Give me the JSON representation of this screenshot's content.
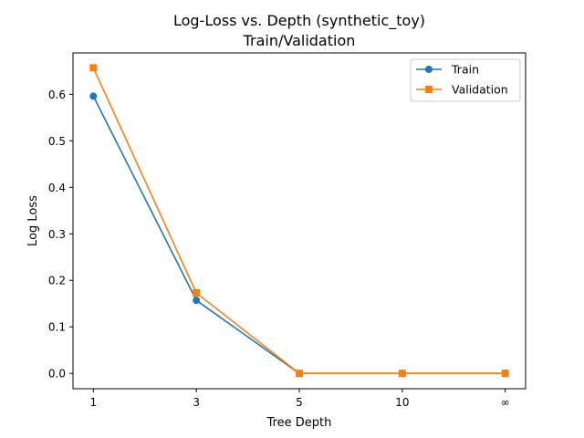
{
  "chart_data": {
    "type": "line",
    "title": "Log-Loss vs. Depth (synthetic_toy)",
    "subtitle": "Train/Validation",
    "xlabel": "Tree Depth",
    "ylabel": "Log Loss",
    "categories": [
      "1",
      "3",
      "5",
      "10",
      "∞"
    ],
    "yticks": [
      0.0,
      0.1,
      0.2,
      0.3,
      0.4,
      0.5,
      0.6
    ],
    "ytick_labels": [
      "0.0",
      "0.1",
      "0.2",
      "0.3",
      "0.4",
      "0.5",
      "0.6"
    ],
    "ylim": [
      -0.033,
      0.689
    ],
    "grid": false,
    "legend_position": "top-right",
    "series": [
      {
        "name": "Train",
        "color": "#1f77b4",
        "marker": "circle",
        "values": [
          0.596,
          0.157,
          0.0,
          0.0,
          0.0
        ]
      },
      {
        "name": "Validation",
        "color": "#ff7f0e",
        "marker": "square",
        "values": [
          0.657,
          0.173,
          0.0,
          0.0,
          0.0
        ]
      }
    ]
  }
}
